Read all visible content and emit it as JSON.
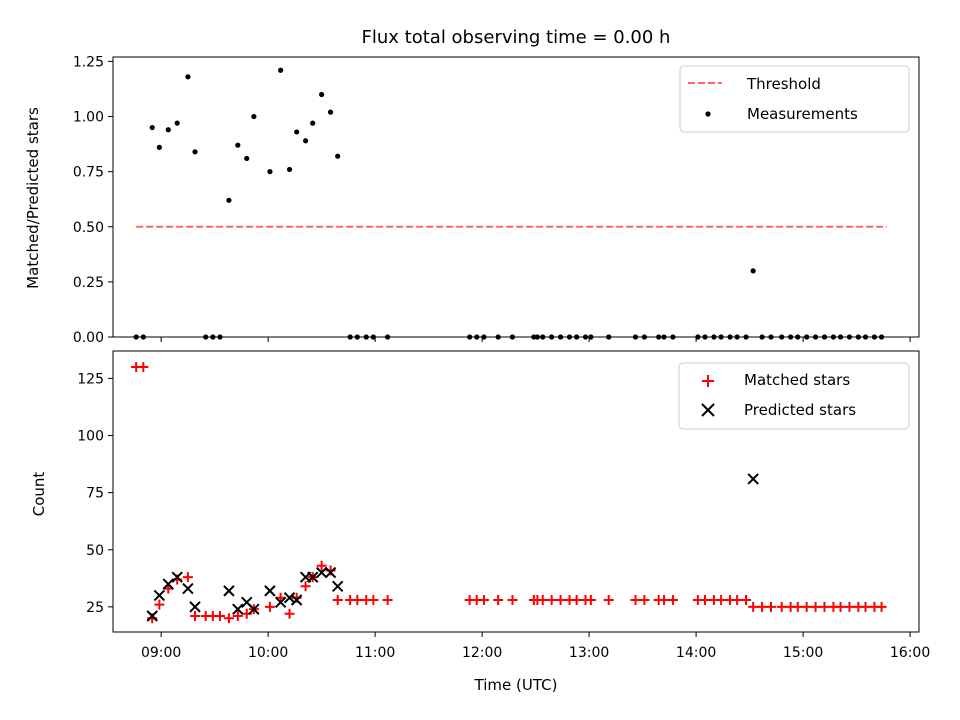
{
  "chart_data": [
    {
      "type": "scatter",
      "title": "Flux total observing time = 0.00 h",
      "ylabel": "Matched/Predicted stars",
      "xlabel": "",
      "xlim": [
        "08:33",
        "16:05"
      ],
      "ylim": [
        0,
        1.27
      ],
      "yticks": [
        "0.00",
        "0.25",
        "0.50",
        "0.75",
        "1.00",
        "1.25"
      ],
      "legend_position": "top-right",
      "threshold": {
        "name": "Threshold",
        "value": 0.5,
        "x_start": "08:46",
        "x_end": "15:47",
        "color": "#ff6464"
      },
      "series": [
        {
          "name": "Measurements",
          "color": "#000000",
          "points": [
            [
              "08:46",
              0
            ],
            [
              "08:50",
              0
            ],
            [
              "08:55",
              0.95
            ],
            [
              "08:59",
              0.86
            ],
            [
              "09:04",
              0.94
            ],
            [
              "09:09",
              0.97
            ],
            [
              "09:15",
              1.18
            ],
            [
              "09:19",
              0.84
            ],
            [
              "09:25",
              0
            ],
            [
              "09:29",
              0
            ],
            [
              "09:33",
              0
            ],
            [
              "09:38",
              0.62
            ],
            [
              "09:43",
              0.87
            ],
            [
              "09:48",
              0.81
            ],
            [
              "09:52",
              1.0
            ],
            [
              "10:01",
              0.75
            ],
            [
              "10:07",
              1.21
            ],
            [
              "10:12",
              0.76
            ],
            [
              "10:16",
              0.93
            ],
            [
              "10:21",
              0.89
            ],
            [
              "10:25",
              0.97
            ],
            [
              "10:30",
              1.1
            ],
            [
              "10:35",
              1.02
            ],
            [
              "10:39",
              0.82
            ],
            [
              "10:46",
              0
            ],
            [
              "10:50",
              0
            ],
            [
              "10:55",
              0
            ],
            [
              "10:59",
              0
            ],
            [
              "11:07",
              0
            ],
            [
              "11:53",
              0
            ],
            [
              "11:57",
              0
            ],
            [
              "12:01",
              0
            ],
            [
              "12:09",
              0
            ],
            [
              "12:17",
              0
            ],
            [
              "12:29",
              0
            ],
            [
              "12:31",
              0
            ],
            [
              "12:34",
              0
            ],
            [
              "12:39",
              0
            ],
            [
              "12:44",
              0
            ],
            [
              "12:49",
              0
            ],
            [
              "12:53",
              0
            ],
            [
              "12:58",
              0
            ],
            [
              "13:01",
              0
            ],
            [
              "13:11",
              0
            ],
            [
              "13:26",
              0
            ],
            [
              "13:31",
              0
            ],
            [
              "13:39",
              0
            ],
            [
              "13:42",
              0
            ],
            [
              "13:47",
              0
            ],
            [
              "14:01",
              0
            ],
            [
              "14:05",
              0
            ],
            [
              "14:10",
              0
            ],
            [
              "14:14",
              0
            ],
            [
              "14:19",
              0
            ],
            [
              "14:23",
              0
            ],
            [
              "14:28",
              0
            ],
            [
              "14:32",
              0.3
            ],
            [
              "14:37",
              0
            ],
            [
              "14:42",
              0
            ],
            [
              "14:48",
              0
            ],
            [
              "14:53",
              0
            ],
            [
              "14:57",
              0
            ],
            [
              "15:02",
              0
            ],
            [
              "15:07",
              0
            ],
            [
              "15:12",
              0
            ],
            [
              "15:17",
              0
            ],
            [
              "15:21",
              0
            ],
            [
              "15:26",
              0
            ],
            [
              "15:31",
              0
            ],
            [
              "15:35",
              0
            ],
            [
              "15:40",
              0
            ],
            [
              "15:44",
              0
            ]
          ]
        }
      ]
    },
    {
      "type": "scatter",
      "title": "",
      "ylabel": "Count",
      "xlabel": "Time (UTC)",
      "xlim": [
        "08:33",
        "16:05"
      ],
      "ylim": [
        14,
        137
      ],
      "yticks": [
        "25",
        "50",
        "75",
        "100",
        "125"
      ],
      "xticks": [
        "09:00",
        "10:00",
        "11:00",
        "12:00",
        "13:00",
        "14:00",
        "15:00",
        "16:00"
      ],
      "legend_position": "top-right",
      "series": [
        {
          "name": "Matched stars",
          "color": "#ff0000",
          "marker": "plus",
          "points": [
            [
              "08:46",
              130
            ],
            [
              "08:50",
              130
            ],
            [
              "08:55",
              20
            ],
            [
              "08:59",
              26
            ],
            [
              "09:04",
              33
            ],
            [
              "09:09",
              37
            ],
            [
              "09:15",
              38
            ],
            [
              "09:19",
              21
            ],
            [
              "09:25",
              21
            ],
            [
              "09:29",
              21
            ],
            [
              "09:33",
              21
            ],
            [
              "09:38",
              20
            ],
            [
              "09:43",
              21
            ],
            [
              "09:48",
              22
            ],
            [
              "09:52",
              24
            ],
            [
              "10:01",
              25
            ],
            [
              "10:07",
              29
            ],
            [
              "10:12",
              22
            ],
            [
              "10:16",
              29
            ],
            [
              "10:21",
              34
            ],
            [
              "10:25",
              38
            ],
            [
              "10:30",
              43
            ],
            [
              "10:35",
              41
            ],
            [
              "10:39",
              28
            ],
            [
              "10:46",
              28
            ],
            [
              "10:50",
              28
            ],
            [
              "10:55",
              28
            ],
            [
              "10:59",
              28
            ],
            [
              "11:07",
              28
            ],
            [
              "11:53",
              28
            ],
            [
              "11:57",
              28
            ],
            [
              "12:01",
              28
            ],
            [
              "12:09",
              28
            ],
            [
              "12:17",
              28
            ],
            [
              "12:29",
              28
            ],
            [
              "12:31",
              28
            ],
            [
              "12:34",
              28
            ],
            [
              "12:39",
              28
            ],
            [
              "12:44",
              28
            ],
            [
              "12:49",
              28
            ],
            [
              "12:53",
              28
            ],
            [
              "12:58",
              28
            ],
            [
              "13:01",
              28
            ],
            [
              "13:11",
              28
            ],
            [
              "13:26",
              28
            ],
            [
              "13:31",
              28
            ],
            [
              "13:39",
              28
            ],
            [
              "13:42",
              28
            ],
            [
              "13:47",
              28
            ],
            [
              "14:01",
              28
            ],
            [
              "14:05",
              28
            ],
            [
              "14:10",
              28
            ],
            [
              "14:14",
              28
            ],
            [
              "14:19",
              28
            ],
            [
              "14:23",
              28
            ],
            [
              "14:28",
              28
            ],
            [
              "14:32",
              25
            ],
            [
              "14:37",
              25
            ],
            [
              "14:42",
              25
            ],
            [
              "14:48",
              25
            ],
            [
              "14:53",
              25
            ],
            [
              "14:57",
              25
            ],
            [
              "15:02",
              25
            ],
            [
              "15:07",
              25
            ],
            [
              "15:12",
              25
            ],
            [
              "15:17",
              25
            ],
            [
              "15:21",
              25
            ],
            [
              "15:26",
              25
            ],
            [
              "15:31",
              25
            ],
            [
              "15:35",
              25
            ],
            [
              "15:40",
              25
            ],
            [
              "15:44",
              25
            ]
          ]
        },
        {
          "name": "Predicted stars",
          "color": "#000000",
          "marker": "x",
          "points": [
            [
              "08:55",
              21
            ],
            [
              "08:59",
              30
            ],
            [
              "09:04",
              35
            ],
            [
              "09:09",
              38
            ],
            [
              "09:15",
              33
            ],
            [
              "09:19",
              25
            ],
            [
              "09:38",
              32
            ],
            [
              "09:43",
              24
            ],
            [
              "09:48",
              27
            ],
            [
              "09:52",
              24
            ],
            [
              "10:01",
              32
            ],
            [
              "10:07",
              27
            ],
            [
              "10:12",
              29
            ],
            [
              "10:16",
              28
            ],
            [
              "10:21",
              38
            ],
            [
              "10:25",
              38
            ],
            [
              "10:30",
              40
            ],
            [
              "10:35",
              40
            ],
            [
              "10:39",
              34
            ],
            [
              "14:32",
              81
            ]
          ]
        }
      ]
    }
  ]
}
